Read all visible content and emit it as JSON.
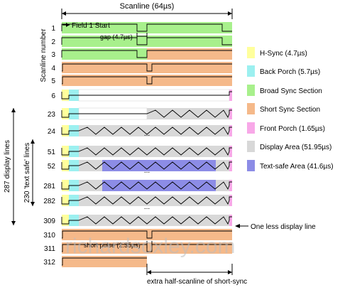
{
  "top": {
    "scanline_label": "Scanline (64µs)",
    "field_start": "Field 1 Start",
    "gap_label": "gap (4.7µs)",
    "short_pulse_label": "short pulse (2.35µs)",
    "bottom_label": "extra half-scanline of short-sync"
  },
  "axes": {
    "scanline_number": "Scanline number",
    "display_lines": "287 display  lines",
    "safe_lines": "230 'text safe' lines"
  },
  "rows": [
    {
      "n": "1",
      "kind": "broad-broad"
    },
    {
      "n": "2",
      "kind": "broad-broad"
    },
    {
      "n": "3",
      "kind": "broad-short"
    },
    {
      "n": "4",
      "kind": "short-short"
    },
    {
      "n": "5",
      "kind": "short-short"
    },
    {
      "n": "6",
      "kind": "blank"
    },
    {
      "n": "23",
      "kind": "half-display"
    },
    {
      "n": "24",
      "kind": "display"
    },
    {
      "n": "51",
      "kind": "display"
    },
    {
      "n": "52",
      "kind": "safe"
    },
    {
      "n": "281",
      "kind": "safe"
    },
    {
      "n": "282",
      "kind": "display"
    },
    {
      "n": "309",
      "kind": "display"
    },
    {
      "n": "310",
      "kind": "short-short"
    },
    {
      "n": "311",
      "kind": "short-short"
    },
    {
      "n": "312",
      "kind": "short-half"
    }
  ],
  "ellipsis": "...",
  "one_less_label": "One less display line",
  "legend": [
    {
      "label": "H-Sync (4.7µs)",
      "color": "#ffff9c"
    },
    {
      "label": "Back Porch (5.7µs)",
      "color": "#9cf0f0"
    },
    {
      "label": "Broad Sync Section",
      "color": "#a8f08c"
    },
    {
      "label": "Short Sync Section",
      "color": "#f5b98a"
    },
    {
      "label": "Front Porch (1.65µs)",
      "color": "#f8a8e8"
    },
    {
      "label": "Display Area (51.95µs)",
      "color": "#d8d8d8"
    },
    {
      "label": "Text-safe Area (41.6µs)",
      "color": "#8c8ce6"
    }
  ],
  "watermark": "richardsoxley.com"
}
